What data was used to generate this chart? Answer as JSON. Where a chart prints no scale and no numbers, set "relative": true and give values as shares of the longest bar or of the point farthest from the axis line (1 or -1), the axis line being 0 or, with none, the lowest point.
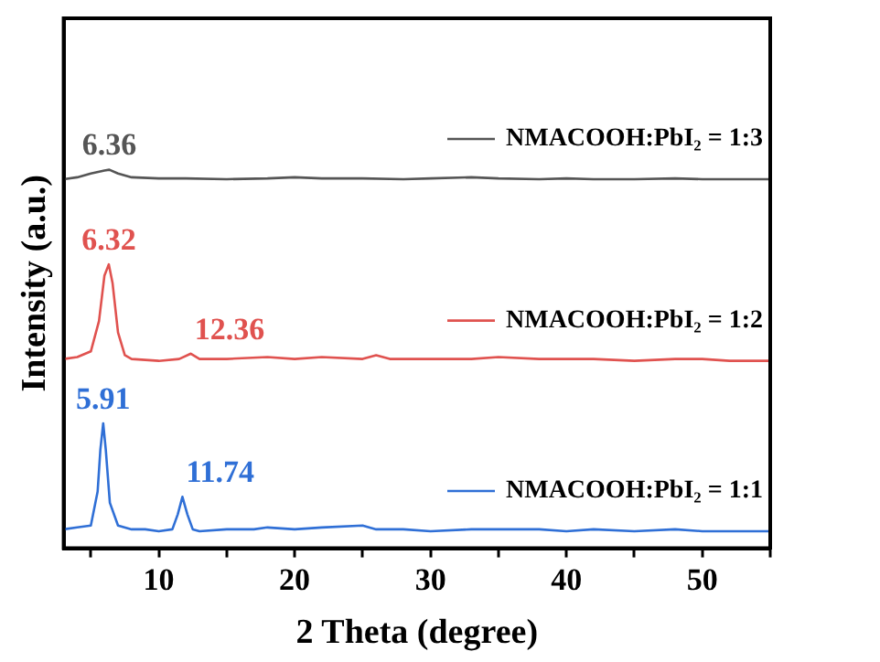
{
  "chart_data": {
    "type": "line",
    "xlabel": "2 Theta (degree)",
    "ylabel": "Intensity (a.u.)",
    "relative": true,
    "tick_labels": "x",
    "legend": "right",
    "grid": false,
    "marker": "none",
    "line_style": "solid",
    "xlim": [
      3,
      55
    ],
    "xticks": [
      {
        "value": 5,
        "label": null
      },
      10,
      {
        "value": 15,
        "label": null
      },
      20,
      {
        "value": 25,
        "label": null
      },
      30,
      {
        "value": 35,
        "label": null
      },
      40,
      {
        "value": 45,
        "label": null
      },
      50,
      {
        "value": 55,
        "label": null
      }
    ],
    "series": [
      {
        "name": "NMACOOH:PbI₂ = 1:1",
        "color": "#2f6fd6",
        "x": [
          3,
          4,
          5,
          5.5,
          5.7,
          5.91,
          6.1,
          6.4,
          7,
          8,
          9,
          10,
          11,
          11.4,
          11.74,
          12.1,
          12.5,
          13,
          15,
          17,
          18,
          20,
          22,
          25,
          26,
          28,
          30,
          33,
          35,
          38,
          40,
          42,
          45,
          48,
          50,
          52,
          55
        ],
        "values": [
          0.05,
          0.055,
          0.06,
          0.15,
          0.26,
          0.33,
          0.26,
          0.12,
          0.06,
          0.05,
          0.05,
          0.045,
          0.05,
          0.09,
          0.136,
          0.09,
          0.05,
          0.045,
          0.05,
          0.05,
          0.055,
          0.05,
          0.055,
          0.06,
          0.05,
          0.05,
          0.045,
          0.05,
          0.05,
          0.05,
          0.045,
          0.05,
          0.045,
          0.05,
          0.045,
          0.045,
          0.045
        ]
      },
      {
        "name": "NMACOOH:PbI₂ = 1:2",
        "color": "#e0524f",
        "x": [
          3,
          4,
          5,
          5.6,
          6,
          6.32,
          6.6,
          7,
          7.5,
          8,
          10,
          11.5,
          12.36,
          13,
          15,
          18,
          20,
          22,
          25,
          26,
          27,
          30,
          33,
          35,
          38,
          40,
          42,
          45,
          48,
          50,
          52,
          55
        ],
        "values": [
          0.5,
          0.505,
          0.52,
          0.6,
          0.72,
          0.75,
          0.7,
          0.57,
          0.51,
          0.5,
          0.495,
          0.5,
          0.514,
          0.5,
          0.5,
          0.505,
          0.5,
          0.505,
          0.5,
          0.51,
          0.5,
          0.5,
          0.5,
          0.505,
          0.5,
          0.5,
          0.5,
          0.495,
          0.5,
          0.5,
          0.495,
          0.495
        ]
      },
      {
        "name": "NMACOOH:PbI₂ = 1:3",
        "color": "#555555",
        "x": [
          3,
          4,
          5,
          6,
          6.36,
          7,
          8,
          10,
          12,
          15,
          18,
          20,
          22,
          25,
          28,
          30,
          33,
          35,
          38,
          40,
          42,
          45,
          48,
          50,
          52,
          55
        ],
        "values": [
          0.975,
          0.98,
          0.99,
          0.998,
          1.0,
          0.99,
          0.98,
          0.977,
          0.977,
          0.975,
          0.977,
          0.98,
          0.977,
          0.977,
          0.975,
          0.977,
          0.98,
          0.977,
          0.975,
          0.977,
          0.975,
          0.975,
          0.977,
          0.975,
          0.975,
          0.975
        ]
      }
    ],
    "annotations": [
      {
        "text": "6.36",
        "x": 6.36,
        "y": 1.0
      },
      {
        "text": "6.32",
        "x": 6.32,
        "y": 0.75
      },
      {
        "text": "12.36",
        "x": 12.36,
        "y": 0.514
      },
      {
        "text": "5.91",
        "x": 5.91,
        "y": 0.33
      },
      {
        "text": "11.74",
        "x": 11.74,
        "y": 0.136
      }
    ]
  }
}
